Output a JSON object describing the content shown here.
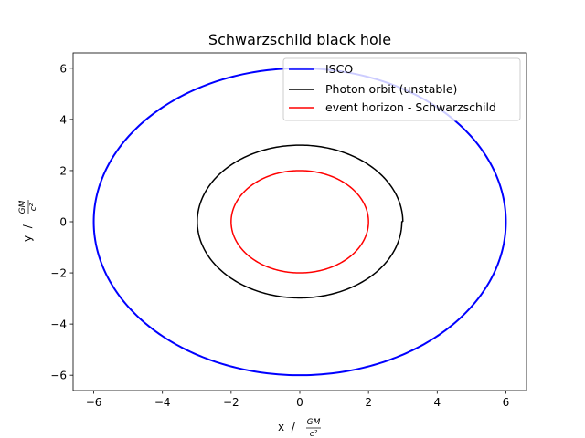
{
  "chart_data": {
    "type": "line",
    "title": "Schwarzschild black hole",
    "xlabel": {
      "prefix": "x  /",
      "numerator": "GM",
      "denominator": "c²"
    },
    "ylabel": {
      "prefix": "y  /",
      "numerator": "GM",
      "denominator": "c²"
    },
    "xlim": [
      -6.6,
      6.6
    ],
    "ylim": [
      -6.6,
      6.6
    ],
    "x_ticks": [
      -6,
      -4,
      -2,
      0,
      2,
      4,
      6
    ],
    "y_ticks": [
      -6,
      -4,
      -2,
      0,
      2,
      4,
      6
    ],
    "x_tick_labels": [
      "−6",
      "−4",
      "−2",
      "0",
      "2",
      "4",
      "6"
    ],
    "y_tick_labels": [
      "−6",
      "−4",
      "−2",
      "0",
      "2",
      "4",
      "6"
    ],
    "grid": false,
    "legend_position": "upper right",
    "series": [
      {
        "name": "ISCO",
        "color": "#0000ff",
        "shape": "circle",
        "radius": 6
      },
      {
        "name": "Photon orbit (unstable)",
        "color": "#000000",
        "shape": "spiral",
        "start_radius": 3.0,
        "end_radius": 2.97
      },
      {
        "name": "event horizon - Schwarzschild",
        "color": "#ff0000",
        "shape": "circle",
        "radius": 2
      }
    ]
  }
}
